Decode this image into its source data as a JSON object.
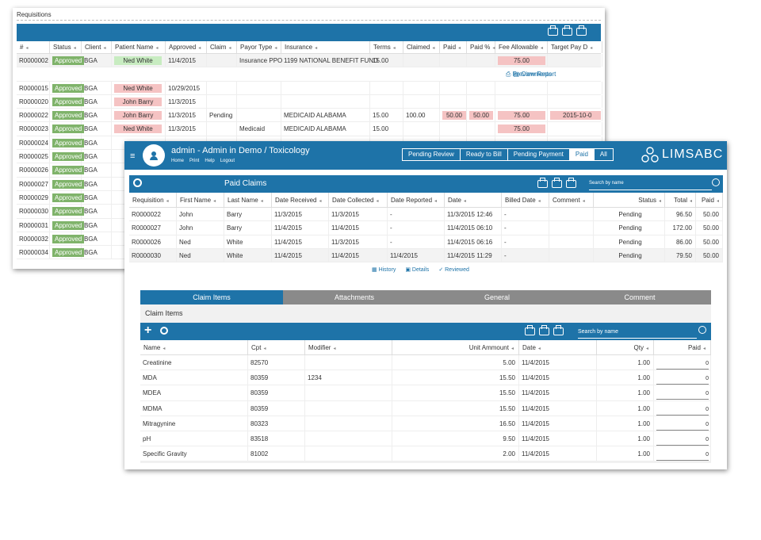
{
  "requisitions": {
    "title": "Requisitions",
    "columns": [
      "#",
      "Status",
      "Client",
      "Patient Name",
      "Approved",
      "Claim",
      "Payor Type",
      "Insurance",
      "Terms",
      "Claimed",
      "Paid",
      "Paid %",
      "Fee Allowable",
      "Target Pay D"
    ],
    "first_row": {
      "id": "R0000002",
      "status": "Approved",
      "client": "BGA",
      "patient": "Ned White",
      "approved": "11/4/2015",
      "payor": "Insurance PPO",
      "insurance": "1199 NATIONAL BENEFIT FUND",
      "terms": "15.00",
      "fee": "75.00"
    },
    "sub_actions": {
      "comments": "Comments",
      "preview": "Preview Report"
    },
    "rows": [
      {
        "id": "R0000015",
        "status": "Approved",
        "client": "BGA",
        "patient": "Ned White",
        "approved": "10/29/2015",
        "claim": "",
        "payor": "",
        "insurance": "",
        "terms": "",
        "claimed": "",
        "paid": "",
        "paid_pct": "",
        "fee": "",
        "target": ""
      },
      {
        "id": "R0000020",
        "status": "Approved",
        "client": "BGA",
        "patient": "John Barry",
        "approved": "11/3/2015",
        "claim": "",
        "payor": "",
        "insurance": "",
        "terms": "",
        "claimed": "",
        "paid": "",
        "paid_pct": "",
        "fee": "",
        "target": ""
      },
      {
        "id": "R0000022",
        "status": "Approved",
        "client": "BGA",
        "patient": "John Barry",
        "approved": "11/3/2015",
        "claim": "Pending",
        "payor": "",
        "insurance": "MEDICAID ALABAMA",
        "terms": "15.00",
        "claimed": "100.00",
        "paid": "50.00",
        "paid_pct": "50.00",
        "fee": "75.00",
        "target": "2015-10-0"
      },
      {
        "id": "R0000023",
        "status": "Approved",
        "client": "BGA",
        "patient": "Ned White",
        "approved": "11/3/2015",
        "claim": "",
        "payor": "Medicaid",
        "insurance": "MEDICAID ALABAMA",
        "terms": "15.00",
        "claimed": "",
        "paid": "",
        "paid_pct": "",
        "fee": "75.00",
        "target": ""
      },
      {
        "id": "R0000024",
        "status": "Approved",
        "client": "BGA",
        "patient": "",
        "approved": "",
        "claim": "",
        "payor": "",
        "insurance": "",
        "terms": "",
        "claimed": "",
        "paid": "",
        "paid_pct": "",
        "fee": "",
        "target": ""
      },
      {
        "id": "R0000025",
        "status": "Approved",
        "client": "BGA",
        "patient": "",
        "approved": "",
        "claim": "",
        "payor": "",
        "insurance": "",
        "terms": "",
        "claimed": "",
        "paid": "",
        "paid_pct": "",
        "fee": "",
        "target": ""
      },
      {
        "id": "R0000026",
        "status": "Approved",
        "client": "BGA",
        "patient": "",
        "approved": "",
        "claim": "",
        "payor": "",
        "insurance": "",
        "terms": "",
        "claimed": "",
        "paid": "",
        "paid_pct": "",
        "fee": "",
        "target": ""
      },
      {
        "id": "R0000027",
        "status": "Approved",
        "client": "BGA",
        "patient": "",
        "approved": "",
        "claim": "",
        "payor": "",
        "insurance": "",
        "terms": "",
        "claimed": "",
        "paid": "",
        "paid_pct": "",
        "fee": "",
        "target": ""
      },
      {
        "id": "R0000029",
        "status": "Approved",
        "client": "BGA",
        "patient": "",
        "approved": "",
        "claim": "",
        "payor": "",
        "insurance": "",
        "terms": "",
        "claimed": "",
        "paid": "",
        "paid_pct": "",
        "fee": "",
        "target": ""
      },
      {
        "id": "R0000030",
        "status": "Approved",
        "client": "BGA",
        "patient": "",
        "approved": "",
        "claim": "",
        "payor": "",
        "insurance": "",
        "terms": "",
        "claimed": "",
        "paid": "",
        "paid_pct": "",
        "fee": "",
        "target": ""
      },
      {
        "id": "R0000031",
        "status": "Approved",
        "client": "BGA",
        "patient": "",
        "approved": "",
        "claim": "",
        "payor": "",
        "insurance": "",
        "terms": "",
        "claimed": "",
        "paid": "",
        "paid_pct": "",
        "fee": "",
        "target": ""
      },
      {
        "id": "R0000032",
        "status": "Approved",
        "client": "BGA",
        "patient": "",
        "approved": "",
        "claim": "",
        "payor": "",
        "insurance": "",
        "terms": "",
        "claimed": "",
        "paid": "",
        "paid_pct": "",
        "fee": "",
        "target": ""
      },
      {
        "id": "R0000034",
        "status": "Approved",
        "client": "BGA",
        "patient": "",
        "approved": "",
        "claim": "",
        "payor": "",
        "insurance": "",
        "terms": "",
        "claimed": "",
        "paid": "",
        "paid_pct": "",
        "fee": "",
        "target": ""
      }
    ]
  },
  "app": {
    "header": {
      "title": "admin - Admin in Demo / Toxicology",
      "links": [
        "Home",
        "Print",
        "Help",
        "Logout"
      ],
      "brand": "LIMSABC"
    },
    "top_tabs": [
      "Pending Review",
      "Ready to Bill",
      "Pending Payment",
      "Paid",
      "All"
    ],
    "active_top_tab": "Paid",
    "paid_claims": {
      "title": "Paid Claims",
      "search_placeholder": "Search by name",
      "columns": [
        "Requisition",
        "First Name",
        "Last Name",
        "Date Received",
        "Date Collected",
        "Date Reported",
        "Date",
        "Billed Date",
        "Comment",
        "Status",
        "Total",
        "Paid"
      ],
      "rows": [
        {
          "req": "R0000022",
          "first": "John",
          "last": "Barry",
          "received": "11/3/2015",
          "collected": "11/3/2015",
          "reported": "-",
          "date": "11/3/2015 12:46",
          "billed": "-",
          "comment": "",
          "status": "Pending",
          "total": "96.50",
          "paid": "50.00"
        },
        {
          "req": "R0000027",
          "first": "John",
          "last": "Barry",
          "received": "11/4/2015",
          "collected": "11/4/2015",
          "reported": "-",
          "date": "11/4/2015 06:10",
          "billed": "-",
          "comment": "",
          "status": "Pending",
          "total": "172.00",
          "paid": "50.00"
        },
        {
          "req": "R0000026",
          "first": "Ned",
          "last": "White",
          "received": "11/4/2015",
          "collected": "11/3/2015",
          "reported": "-",
          "date": "11/4/2015 06:16",
          "billed": "-",
          "comment": "",
          "status": "Pending",
          "total": "86.00",
          "paid": "50.00"
        },
        {
          "req": "R0000030",
          "first": "Ned",
          "last": "White",
          "received": "11/4/2015",
          "collected": "11/4/2015",
          "reported": "11/4/2015",
          "date": "11/4/2015 11:29",
          "billed": "-",
          "comment": "",
          "status": "Pending",
          "total": "79.50",
          "paid": "50.00"
        }
      ],
      "actions": {
        "history": "History",
        "details": "Details",
        "reviewed": "Reviewed"
      }
    },
    "detail_tabs": [
      "Claim Items",
      "Attachments",
      "General",
      "Comment"
    ],
    "active_detail_tab": "Claim Items",
    "claim_items": {
      "title": "Claim Items",
      "search_placeholder": "Search by name",
      "columns": [
        "Name",
        "Cpt",
        "Modifier",
        "Unit Ammount",
        "Date",
        "Qty",
        "Paid"
      ],
      "rows": [
        {
          "name": "Creatinine",
          "cpt": "82570",
          "modifier": "",
          "unit": "5.00",
          "date": "11/4/2015",
          "qty": "1.00",
          "paid": "0"
        },
        {
          "name": "MDA",
          "cpt": "80359",
          "modifier": "1234",
          "unit": "15.50",
          "date": "11/4/2015",
          "qty": "1.00",
          "paid": "0"
        },
        {
          "name": "MDEA",
          "cpt": "80359",
          "modifier": "",
          "unit": "15.50",
          "date": "11/4/2015",
          "qty": "1.00",
          "paid": "0"
        },
        {
          "name": "MDMA",
          "cpt": "80359",
          "modifier": "",
          "unit": "15.50",
          "date": "11/4/2015",
          "qty": "1.00",
          "paid": "0"
        },
        {
          "name": "Mitragynine",
          "cpt": "80323",
          "modifier": "",
          "unit": "16.50",
          "date": "11/4/2015",
          "qty": "1.00",
          "paid": "0"
        },
        {
          "name": "pH",
          "cpt": "83518",
          "modifier": "",
          "unit": "9.50",
          "date": "11/4/2015",
          "qty": "1.00",
          "paid": "0"
        },
        {
          "name": "Specific Gravity",
          "cpt": "81002",
          "modifier": "",
          "unit": "2.00",
          "date": "11/4/2015",
          "qty": "1.00",
          "paid": "0"
        }
      ]
    }
  },
  "colors": {
    "primary": "#1e73a8",
    "approved": "#7fb36a",
    "pink": "#f5c3c3",
    "light_green": "#c8ecc1",
    "tab_inactive": "#8a8a8a"
  }
}
